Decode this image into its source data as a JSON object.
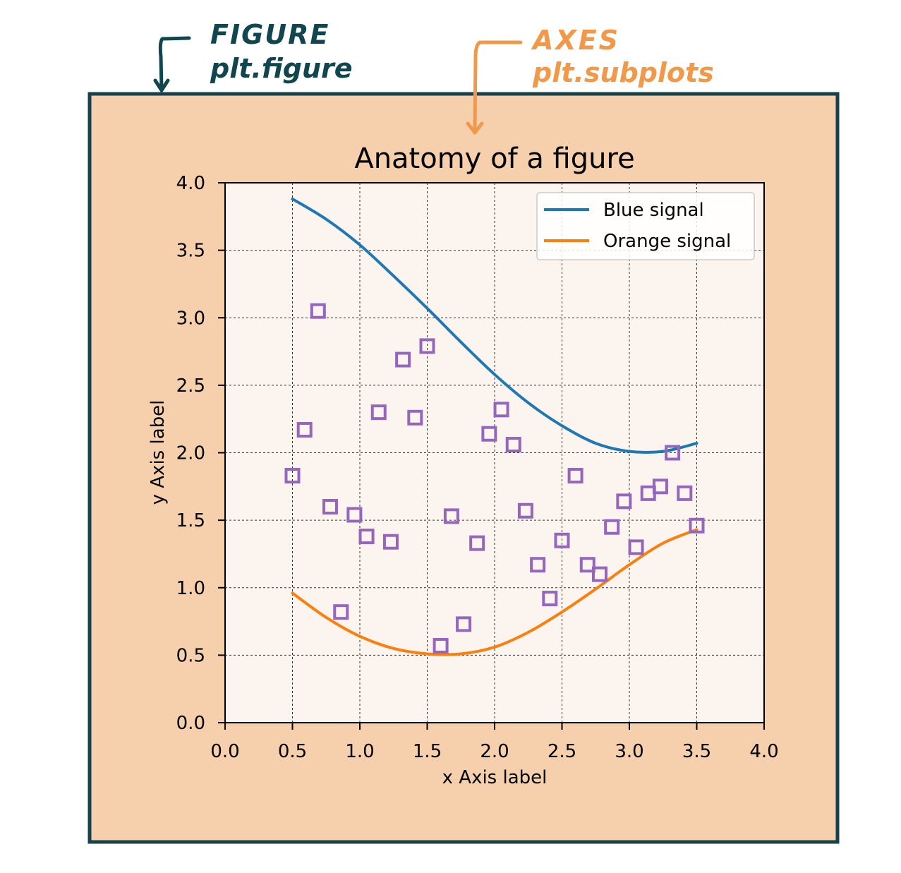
{
  "annotations": {
    "figure_title": "FIGURE",
    "figure_code": "plt.figure",
    "figure_color": "#11464f",
    "axes_title": "AXES",
    "axes_code": "plt.subplots",
    "axes_color": "#f0994a"
  },
  "colors": {
    "figure_bg": "#f6cfac",
    "figure_border": "#16414a",
    "axes_bg": "#fcf4ee",
    "grid": "#333333",
    "marker": "#9467bd",
    "blue": "#1f77b4",
    "orange": "#ff7f0e"
  },
  "chart_data": {
    "type": "line",
    "title": "Anatomy of a figure",
    "xlabel": "x Axis label",
    "ylabel": "y Axis label",
    "xlim": [
      0,
      4
    ],
    "ylim": [
      0,
      4
    ],
    "grid": true,
    "legend_position": "top-right",
    "xticks": [
      "0.0",
      "0.5",
      "1.0",
      "1.5",
      "2.0",
      "2.5",
      "3.0",
      "3.5",
      "4.0"
    ],
    "yticks": [
      "0.0",
      "0.5",
      "1.0",
      "1.5",
      "2.0",
      "2.5",
      "3.0",
      "3.5",
      "4.0"
    ],
    "series": [
      {
        "name": "Blue signal",
        "kind": "line",
        "color": "#1f77b4",
        "x": [
          0.5,
          0.75,
          1.0,
          1.25,
          1.5,
          1.75,
          2.0,
          2.25,
          2.5,
          2.75,
          3.0,
          3.25,
          3.5
        ],
        "y": [
          3.88,
          3.73,
          3.54,
          3.31,
          3.07,
          2.82,
          2.58,
          2.37,
          2.2,
          2.07,
          2.01,
          2.01,
          2.07
        ]
      },
      {
        "name": "Orange signal",
        "kind": "line",
        "color": "#ff7f0e",
        "x": [
          0.5,
          0.75,
          1.0,
          1.25,
          1.5,
          1.75,
          2.0,
          2.25,
          2.5,
          2.75,
          3.0,
          3.25,
          3.5
        ],
        "y": [
          0.96,
          0.78,
          0.64,
          0.55,
          0.51,
          0.51,
          0.56,
          0.67,
          0.82,
          0.99,
          1.17,
          1.33,
          1.43
        ]
      },
      {
        "kind": "scatter",
        "marker": "square",
        "color": "#9467bd",
        "x": [
          0.5,
          0.59,
          0.69,
          0.78,
          0.86,
          0.96,
          1.05,
          1.14,
          1.23,
          1.32,
          1.41,
          1.5,
          1.6,
          1.68,
          1.77,
          1.87,
          1.96,
          2.05,
          2.14,
          2.23,
          2.32,
          2.41,
          2.5,
          2.6,
          2.69,
          2.78,
          2.87,
          2.96,
          3.05,
          3.14,
          3.23,
          3.32,
          3.41,
          3.5
        ],
        "y": [
          1.83,
          2.17,
          3.05,
          1.6,
          0.82,
          1.54,
          1.38,
          2.3,
          1.34,
          2.69,
          2.26,
          2.79,
          0.57,
          1.53,
          0.73,
          1.33,
          2.14,
          2.32,
          2.06,
          1.57,
          1.17,
          0.92,
          1.35,
          1.83,
          1.17,
          1.1,
          1.45,
          1.64,
          1.3,
          1.7,
          1.75,
          2.0,
          1.7,
          1.46
        ]
      }
    ]
  }
}
